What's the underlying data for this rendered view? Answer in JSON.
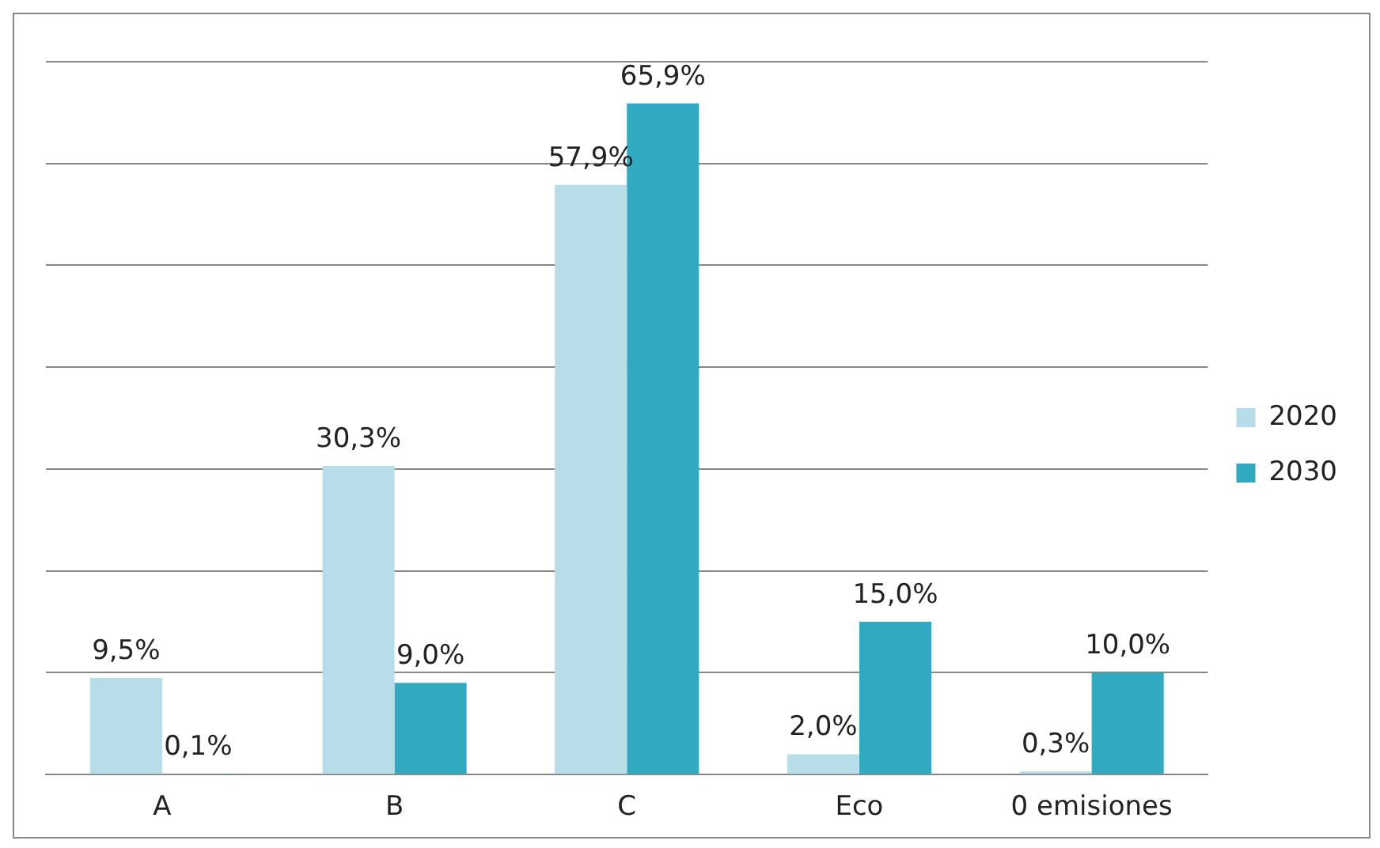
{
  "chart_data": {
    "type": "bar",
    "categories": [
      "A",
      "B",
      "C",
      "Eco",
      "0 emisiones"
    ],
    "series": [
      {
        "name": "2020",
        "color": "#b7dde8",
        "values": [
          9.5,
          30.3,
          57.9,
          2.0,
          0.3
        ],
        "value_labels": [
          "9,5%",
          "30,3%",
          "57,9%",
          "2,0%",
          "0,3%"
        ]
      },
      {
        "name": "2030",
        "color": "#31a9c1",
        "values": [
          0.1,
          9.0,
          65.9,
          15.0,
          10.0
        ],
        "value_labels": [
          "0,1%",
          "9,0%",
          "65,9%",
          "15,0%",
          "10,0%"
        ]
      }
    ],
    "ylim": [
      0,
      70
    ],
    "yticks": [
      {
        "value": 0,
        "label": null
      },
      {
        "value": 10,
        "label": null
      },
      {
        "value": 20,
        "label": null
      },
      {
        "value": 30,
        "label": null
      },
      {
        "value": 40,
        "label": null
      },
      {
        "value": 50,
        "label": null
      },
      {
        "value": 60,
        "label": null
      },
      {
        "value": 70,
        "label": null
      }
    ],
    "tick_labels": "x",
    "grid": "y",
    "legend": "right"
  }
}
